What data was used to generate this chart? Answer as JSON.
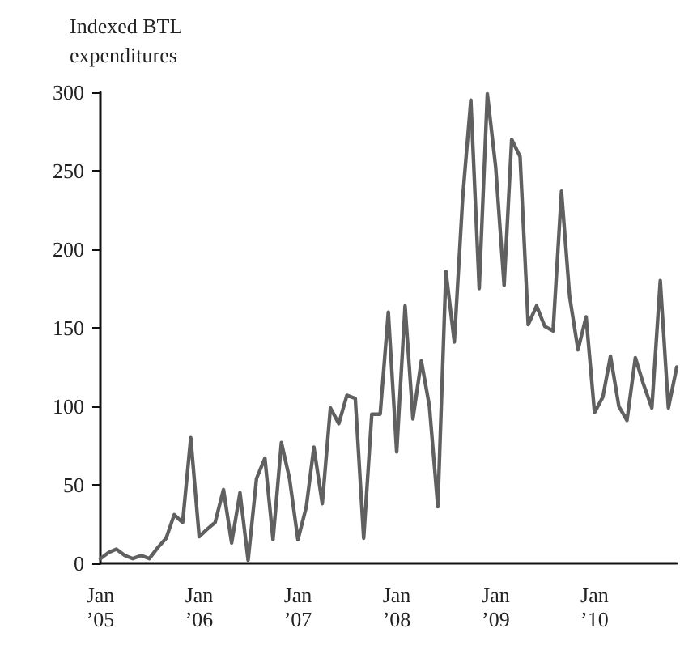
{
  "chart_data": {
    "type": "line",
    "ylabel": "Indexed BTL expenditures",
    "x": [
      "2005-01",
      "2005-02",
      "2005-03",
      "2005-04",
      "2005-05",
      "2005-06",
      "2005-07",
      "2005-08",
      "2005-09",
      "2005-10",
      "2005-11",
      "2005-12",
      "2006-01",
      "2006-02",
      "2006-03",
      "2006-04",
      "2006-05",
      "2006-06",
      "2006-07",
      "2006-08",
      "2006-09",
      "2006-10",
      "2006-11",
      "2006-12",
      "2007-01",
      "2007-02",
      "2007-03",
      "2007-04",
      "2007-05",
      "2007-06",
      "2007-07",
      "2007-08",
      "2007-09",
      "2007-10",
      "2007-11",
      "2007-12",
      "2008-01",
      "2008-02",
      "2008-03",
      "2008-04",
      "2008-05",
      "2008-06",
      "2008-07",
      "2008-08",
      "2008-09",
      "2008-10",
      "2008-11",
      "2008-12",
      "2009-01",
      "2009-02",
      "2009-03",
      "2009-04",
      "2009-05",
      "2009-06",
      "2009-07",
      "2009-08",
      "2009-09",
      "2009-10",
      "2009-11",
      "2009-12",
      "2010-01",
      "2010-02",
      "2010-03",
      "2010-04",
      "2010-05",
      "2010-06",
      "2010-07",
      "2010-08",
      "2010-09",
      "2010-10",
      "2010-11"
    ],
    "series": [
      {
        "color": "#606060",
        "values": [
          3,
          7,
          9,
          5,
          3,
          5,
          3,
          10,
          16,
          31,
          26,
          80,
          17,
          22,
          26,
          47,
          13,
          45,
          2,
          54,
          67,
          15,
          77,
          54,
          15,
          36,
          74,
          38,
          99,
          89,
          107,
          105,
          16,
          95,
          95,
          160,
          71,
          164,
          92,
          129,
          100,
          36,
          186,
          141,
          233,
          295,
          175,
          299,
          252,
          177,
          270,
          259,
          152,
          164,
          151,
          148,
          237,
          170,
          136,
          157,
          96,
          106,
          132,
          100,
          91,
          131,
          114,
          99,
          180,
          99,
          125
        ]
      }
    ],
    "xlim": [
      "2005-01",
      "2010-11"
    ],
    "xticks": [
      {
        "value": "2005-01",
        "label": "Jan\n’05"
      },
      {
        "value": "2006-01",
        "label": "Jan\n’06"
      },
      {
        "value": "2007-01",
        "label": "Jan\n’07"
      },
      {
        "value": "2008-01",
        "label": "Jan\n’08"
      },
      {
        "value": "2009-01",
        "label": "Jan\n’09"
      },
      {
        "value": "2010-01",
        "label": "Jan\n’10"
      }
    ],
    "ylim": [
      0,
      300
    ],
    "yticks": [
      0,
      50,
      100,
      150,
      200,
      250,
      300
    ],
    "grid": false,
    "marker": "none",
    "line_style": "solid"
  }
}
